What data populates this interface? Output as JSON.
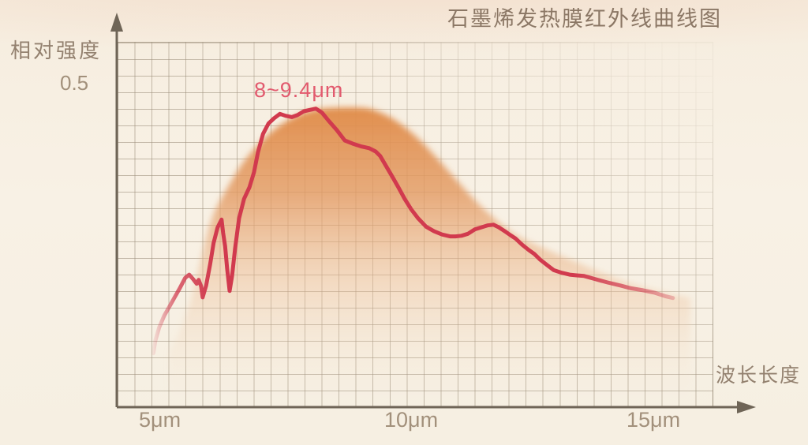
{
  "title": "石墨烯发热膜红外线曲线图",
  "annotation": "8~9.4μm",
  "y_axis": {
    "label": "相对强度",
    "tick_label": "0.5"
  },
  "x_axis": {
    "label": "波长长度",
    "tick_labels": [
      "5μm",
      "10μm",
      "15μm"
    ]
  },
  "colors": {
    "background": "#f8f1e4",
    "curve": "#d13a4e",
    "envelope": "#e08a46",
    "grid": "#a99c88",
    "axis": "#6f6557",
    "title_text": "#8b7765",
    "tick_text": "#a2907b",
    "annotation_text": "#e25a6e"
  },
  "chart_data": {
    "type": "area",
    "title": "石墨烯发热膜红外线曲线图",
    "xlabel": "波长长度",
    "ylabel": "相对强度",
    "x_tick_labels": [
      "5μm",
      "10μm",
      "15μm"
    ],
    "x_tick_values_um": [
      5,
      10,
      15
    ],
    "x_range_um": [
      4.8,
      15.7
    ],
    "y_range": [
      0,
      0.55
    ],
    "y_reference_tick": 0.5,
    "grid": true,
    "legend": false,
    "annotation": {
      "text": "8~9.4μm",
      "range_um": [
        8,
        9.4
      ]
    },
    "series": [
      {
        "name": "infrared-intensity-curve",
        "type": "line",
        "color": "#d13a4e",
        "points_um_intensity": [
          [
            4.83,
            0.082
          ],
          [
            4.87,
            0.101
          ],
          [
            4.95,
            0.122
          ],
          [
            5.05,
            0.14
          ],
          [
            5.14,
            0.152
          ],
          [
            5.25,
            0.167
          ],
          [
            5.36,
            0.182
          ],
          [
            5.47,
            0.198
          ],
          [
            5.55,
            0.203
          ],
          [
            5.63,
            0.196
          ],
          [
            5.7,
            0.189
          ],
          [
            5.74,
            0.195
          ],
          [
            5.79,
            0.185
          ],
          [
            5.82,
            0.168
          ],
          [
            5.89,
            0.186
          ],
          [
            5.97,
            0.219
          ],
          [
            6.04,
            0.252
          ],
          [
            6.12,
            0.276
          ],
          [
            6.2,
            0.288
          ],
          [
            6.23,
            0.268
          ],
          [
            6.27,
            0.247
          ],
          [
            6.31,
            0.213
          ],
          [
            6.36,
            0.178
          ],
          [
            6.41,
            0.201
          ],
          [
            6.47,
            0.243
          ],
          [
            6.55,
            0.29
          ],
          [
            6.65,
            0.32
          ],
          [
            6.76,
            0.338
          ],
          [
            6.85,
            0.361
          ],
          [
            6.93,
            0.392
          ],
          [
            7.03,
            0.42
          ],
          [
            7.14,
            0.436
          ],
          [
            7.25,
            0.444
          ],
          [
            7.37,
            0.451
          ],
          [
            7.48,
            0.448
          ],
          [
            7.61,
            0.446
          ],
          [
            7.72,
            0.449
          ],
          [
            7.85,
            0.455
          ],
          [
            7.97,
            0.457
          ],
          [
            8.09,
            0.459
          ],
          [
            8.21,
            0.453
          ],
          [
            8.35,
            0.44
          ],
          [
            8.51,
            0.426
          ],
          [
            8.67,
            0.41
          ],
          [
            8.83,
            0.405
          ],
          [
            8.99,
            0.401
          ],
          [
            9.16,
            0.398
          ],
          [
            9.29,
            0.393
          ],
          [
            9.38,
            0.386
          ],
          [
            9.51,
            0.369
          ],
          [
            9.64,
            0.352
          ],
          [
            9.75,
            0.337
          ],
          [
            9.87,
            0.32
          ],
          [
            10.0,
            0.304
          ],
          [
            10.14,
            0.29
          ],
          [
            10.3,
            0.277
          ],
          [
            10.46,
            0.27
          ],
          [
            10.62,
            0.265
          ],
          [
            10.78,
            0.262
          ],
          [
            10.89,
            0.262
          ],
          [
            11.01,
            0.263
          ],
          [
            11.14,
            0.266
          ],
          [
            11.28,
            0.273
          ],
          [
            11.41,
            0.276
          ],
          [
            11.53,
            0.279
          ],
          [
            11.65,
            0.28
          ],
          [
            11.76,
            0.276
          ],
          [
            11.88,
            0.27
          ],
          [
            11.99,
            0.264
          ],
          [
            12.09,
            0.259
          ],
          [
            12.23,
            0.249
          ],
          [
            12.36,
            0.241
          ],
          [
            12.47,
            0.235
          ],
          [
            12.59,
            0.226
          ],
          [
            12.74,
            0.217
          ],
          [
            12.86,
            0.21
          ],
          [
            13.02,
            0.206
          ],
          [
            13.18,
            0.203
          ],
          [
            13.32,
            0.202
          ],
          [
            13.47,
            0.201
          ],
          [
            13.7,
            0.196
          ],
          [
            13.94,
            0.191
          ],
          [
            14.21,
            0.186
          ],
          [
            14.41,
            0.182
          ],
          [
            14.65,
            0.179
          ],
          [
            14.89,
            0.175
          ],
          [
            15.09,
            0.17
          ],
          [
            15.25,
            0.167
          ]
        ]
      },
      {
        "name": "smoothed-envelope-fill",
        "type": "area",
        "color": "#e08a46",
        "points_um_intensity": [
          [
            5.16,
            0.085
          ],
          [
            5.43,
            0.122
          ],
          [
            5.71,
            0.201
          ],
          [
            5.98,
            0.29
          ],
          [
            6.27,
            0.331
          ],
          [
            6.61,
            0.375
          ],
          [
            6.9,
            0.401
          ],
          [
            7.14,
            0.42
          ],
          [
            7.45,
            0.438
          ],
          [
            7.82,
            0.453
          ],
          [
            8.16,
            0.459
          ],
          [
            8.56,
            0.461
          ],
          [
            8.96,
            0.461
          ],
          [
            9.19,
            0.459
          ],
          [
            9.51,
            0.449
          ],
          [
            9.75,
            0.438
          ],
          [
            10.14,
            0.414
          ],
          [
            10.54,
            0.381
          ],
          [
            10.93,
            0.347
          ],
          [
            11.33,
            0.313
          ],
          [
            11.72,
            0.286
          ],
          [
            12.12,
            0.262
          ],
          [
            12.67,
            0.243
          ],
          [
            13.23,
            0.225
          ],
          [
            13.78,
            0.207
          ],
          [
            14.41,
            0.189
          ],
          [
            15.04,
            0.176
          ],
          [
            15.6,
            0.167
          ]
        ]
      }
    ]
  }
}
